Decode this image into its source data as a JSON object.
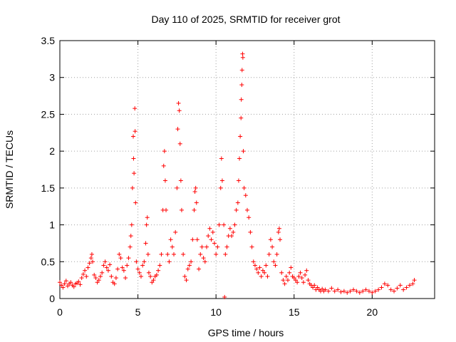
{
  "chart_data": {
    "type": "scatter",
    "title": "Day 110 of 2025, SRMTID for receiver grot",
    "xlabel": "GPS time / hours",
    "ylabel": "SRMTID / TECUs",
    "xlim": [
      0,
      24
    ],
    "ylim": [
      0,
      3.5
    ],
    "xticks": [
      0,
      5,
      10,
      15,
      20
    ],
    "xtick_labels": [
      "0",
      "5",
      "10",
      "15",
      "20"
    ],
    "yticks": [
      0,
      0.5,
      1,
      1.5,
      2,
      2.5,
      3,
      3.5
    ],
    "ytick_labels": [
      "0",
      "0.5",
      "1",
      "1.5",
      "2",
      "2.5",
      "3",
      "3.5"
    ],
    "grid": true,
    "marker": "+",
    "series": [
      {
        "name": "SRMTID",
        "color": "#ff0000",
        "points": [
          [
            0.0,
            0.22
          ],
          [
            0.1,
            0.18
          ],
          [
            0.2,
            0.15
          ],
          [
            0.3,
            0.2
          ],
          [
            0.4,
            0.24
          ],
          [
            0.5,
            0.17
          ],
          [
            0.6,
            0.2
          ],
          [
            0.7,
            0.22
          ],
          [
            0.8,
            0.18
          ],
          [
            0.9,
            0.16
          ],
          [
            1.0,
            0.2
          ],
          [
            1.1,
            0.21
          ],
          [
            1.2,
            0.23
          ],
          [
            1.3,
            0.19
          ],
          [
            1.4,
            0.28
          ],
          [
            1.5,
            0.33
          ],
          [
            1.6,
            0.38
          ],
          [
            1.7,
            0.3
          ],
          [
            1.8,
            0.42
          ],
          [
            1.9,
            0.48
          ],
          [
            2.0,
            0.55
          ],
          [
            2.05,
            0.6
          ],
          [
            2.1,
            0.5
          ],
          [
            2.2,
            0.32
          ],
          [
            2.3,
            0.28
          ],
          [
            2.4,
            0.22
          ],
          [
            2.5,
            0.25
          ],
          [
            2.6,
            0.3
          ],
          [
            2.7,
            0.35
          ],
          [
            2.8,
            0.45
          ],
          [
            2.9,
            0.5
          ],
          [
            3.0,
            0.42
          ],
          [
            3.1,
            0.38
          ],
          [
            3.2,
            0.46
          ],
          [
            3.3,
            0.3
          ],
          [
            3.4,
            0.22
          ],
          [
            3.5,
            0.2
          ],
          [
            3.6,
            0.28
          ],
          [
            3.7,
            0.4
          ],
          [
            3.8,
            0.6
          ],
          [
            3.9,
            0.55
          ],
          [
            4.0,
            0.42
          ],
          [
            4.1,
            0.38
          ],
          [
            4.2,
            0.28
          ],
          [
            4.3,
            0.45
          ],
          [
            4.4,
            0.55
          ],
          [
            4.5,
            0.7
          ],
          [
            4.55,
            0.85
          ],
          [
            4.6,
            1.0
          ],
          [
            4.65,
            1.5
          ],
          [
            4.7,
            2.2
          ],
          [
            4.72,
            1.9
          ],
          [
            4.75,
            1.7
          ],
          [
            4.8,
            2.58
          ],
          [
            4.82,
            2.27
          ],
          [
            4.85,
            1.3
          ],
          [
            4.9,
            0.5
          ],
          [
            5.0,
            0.4
          ],
          [
            5.1,
            0.35
          ],
          [
            5.2,
            0.3
          ],
          [
            5.3,
            0.45
          ],
          [
            5.4,
            0.5
          ],
          [
            5.5,
            0.75
          ],
          [
            5.55,
            1.0
          ],
          [
            5.6,
            1.1
          ],
          [
            5.65,
            0.6
          ],
          [
            5.7,
            0.35
          ],
          [
            5.8,
            0.3
          ],
          [
            5.9,
            0.22
          ],
          [
            6.0,
            0.25
          ],
          [
            6.1,
            0.3
          ],
          [
            6.2,
            0.32
          ],
          [
            6.3,
            0.38
          ],
          [
            6.4,
            0.45
          ],
          [
            6.5,
            0.6
          ],
          [
            6.6,
            1.2
          ],
          [
            6.65,
            1.8
          ],
          [
            6.7,
            2.0
          ],
          [
            6.75,
            1.6
          ],
          [
            6.8,
            1.2
          ],
          [
            6.9,
            0.6
          ],
          [
            7.0,
            0.5
          ],
          [
            7.1,
            0.8
          ],
          [
            7.2,
            0.7
          ],
          [
            7.3,
            0.6
          ],
          [
            7.4,
            0.9
          ],
          [
            7.5,
            1.5
          ],
          [
            7.55,
            2.3
          ],
          [
            7.6,
            2.65
          ],
          [
            7.65,
            2.55
          ],
          [
            7.7,
            2.1
          ],
          [
            7.75,
            1.6
          ],
          [
            7.8,
            1.2
          ],
          [
            7.9,
            0.6
          ],
          [
            8.0,
            0.3
          ],
          [
            8.1,
            0.25
          ],
          [
            8.2,
            0.4
          ],
          [
            8.3,
            0.45
          ],
          [
            8.4,
            0.5
          ],
          [
            8.5,
            0.8
          ],
          [
            8.6,
            1.2
          ],
          [
            8.65,
            1.45
          ],
          [
            8.7,
            1.5
          ],
          [
            8.75,
            1.3
          ],
          [
            8.8,
            0.8
          ],
          [
            8.9,
            0.4
          ],
          [
            9.0,
            0.6
          ],
          [
            9.1,
            0.7
          ],
          [
            9.2,
            0.55
          ],
          [
            9.3,
            0.5
          ],
          [
            9.4,
            0.7
          ],
          [
            9.5,
            0.85
          ],
          [
            9.6,
            0.95
          ],
          [
            9.7,
            0.8
          ],
          [
            9.8,
            0.9
          ],
          [
            9.9,
            0.75
          ],
          [
            10.0,
            0.6
          ],
          [
            10.1,
            0.7
          ],
          [
            10.2,
            1.0
          ],
          [
            10.3,
            1.5
          ],
          [
            10.35,
            1.9
          ],
          [
            10.4,
            1.6
          ],
          [
            10.5,
            1.0
          ],
          [
            10.55,
            0.02
          ],
          [
            10.6,
            0.6
          ],
          [
            10.7,
            0.7
          ],
          [
            10.8,
            0.85
          ],
          [
            10.9,
            0.95
          ],
          [
            11.0,
            0.85
          ],
          [
            11.1,
            0.9
          ],
          [
            11.2,
            1.0
          ],
          [
            11.3,
            1.2
          ],
          [
            11.4,
            1.3
          ],
          [
            11.45,
            1.6
          ],
          [
            11.5,
            1.9
          ],
          [
            11.55,
            2.2
          ],
          [
            11.6,
            2.45
          ],
          [
            11.62,
            2.7
          ],
          [
            11.65,
            2.9
          ],
          [
            11.67,
            3.1
          ],
          [
            11.7,
            3.32
          ],
          [
            11.72,
            3.27
          ],
          [
            11.75,
            2.0
          ],
          [
            11.8,
            1.5
          ],
          [
            11.9,
            1.4
          ],
          [
            12.0,
            1.2
          ],
          [
            12.1,
            1.1
          ],
          [
            12.2,
            0.9
          ],
          [
            12.3,
            0.7
          ],
          [
            12.4,
            0.5
          ],
          [
            12.5,
            0.45
          ],
          [
            12.6,
            0.4
          ],
          [
            12.7,
            0.35
          ],
          [
            12.8,
            0.42
          ],
          [
            12.9,
            0.3
          ],
          [
            13.0,
            0.38
          ],
          [
            13.1,
            0.35
          ],
          [
            13.2,
            0.45
          ],
          [
            13.3,
            0.3
          ],
          [
            13.4,
            0.6
          ],
          [
            13.5,
            0.8
          ],
          [
            13.6,
            0.7
          ],
          [
            13.7,
            0.5
          ],
          [
            13.8,
            0.45
          ],
          [
            13.9,
            0.6
          ],
          [
            14.0,
            0.9
          ],
          [
            14.05,
            0.95
          ],
          [
            14.1,
            0.8
          ],
          [
            14.2,
            0.35
          ],
          [
            14.3,
            0.25
          ],
          [
            14.4,
            0.2
          ],
          [
            14.5,
            0.3
          ],
          [
            14.6,
            0.25
          ],
          [
            14.7,
            0.35
          ],
          [
            14.8,
            0.42
          ],
          [
            14.9,
            0.3
          ],
          [
            15.0,
            0.28
          ],
          [
            15.1,
            0.25
          ],
          [
            15.2,
            0.22
          ],
          [
            15.3,
            0.3
          ],
          [
            15.4,
            0.35
          ],
          [
            15.5,
            0.28
          ],
          [
            15.6,
            0.22
          ],
          [
            15.7,
            0.32
          ],
          [
            15.8,
            0.38
          ],
          [
            15.9,
            0.25
          ],
          [
            16.0,
            0.2
          ],
          [
            16.1,
            0.18
          ],
          [
            16.2,
            0.15
          ],
          [
            16.3,
            0.18
          ],
          [
            16.4,
            0.12
          ],
          [
            16.5,
            0.15
          ],
          [
            16.6,
            0.12
          ],
          [
            16.7,
            0.1
          ],
          [
            16.8,
            0.13
          ],
          [
            16.9,
            0.1
          ],
          [
            17.0,
            0.12
          ],
          [
            17.2,
            0.1
          ],
          [
            17.4,
            0.14
          ],
          [
            17.6,
            0.1
          ],
          [
            17.8,
            0.12
          ],
          [
            18.0,
            0.09
          ],
          [
            18.2,
            0.1
          ],
          [
            18.4,
            0.08
          ],
          [
            18.6,
            0.1
          ],
          [
            18.8,
            0.12
          ],
          [
            19.0,
            0.1
          ],
          [
            19.2,
            0.08
          ],
          [
            19.4,
            0.1
          ],
          [
            19.6,
            0.12
          ],
          [
            19.8,
            0.1
          ],
          [
            20.0,
            0.08
          ],
          [
            20.2,
            0.1
          ],
          [
            20.4,
            0.12
          ],
          [
            20.6,
            0.15
          ],
          [
            20.8,
            0.2
          ],
          [
            21.0,
            0.18
          ],
          [
            21.2,
            0.12
          ],
          [
            21.4,
            0.1
          ],
          [
            21.6,
            0.14
          ],
          [
            21.8,
            0.18
          ],
          [
            22.0,
            0.12
          ],
          [
            22.2,
            0.15
          ],
          [
            22.4,
            0.18
          ],
          [
            22.6,
            0.2
          ],
          [
            22.7,
            0.25
          ]
        ]
      }
    ]
  }
}
